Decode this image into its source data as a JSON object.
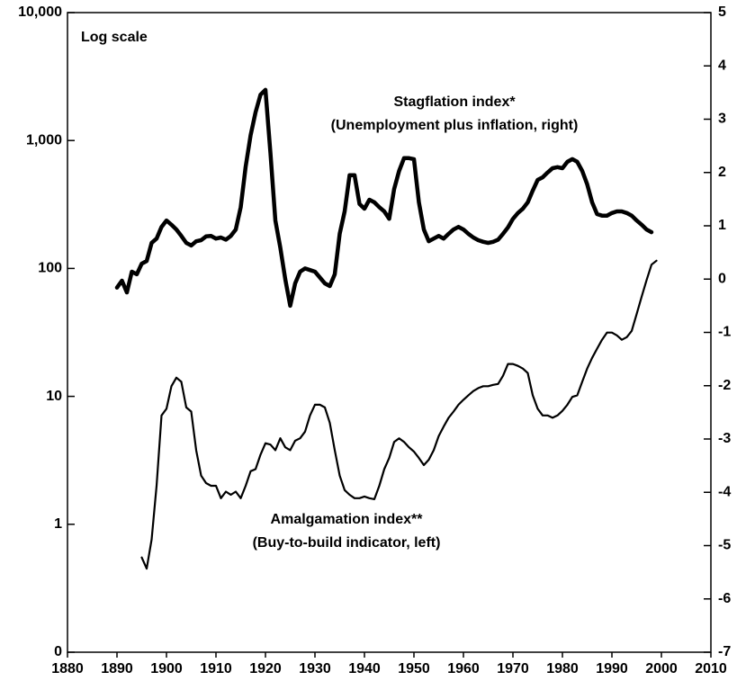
{
  "chart_data": {
    "type": "line",
    "log_scale_y": true,
    "annotations": [
      "Log scale",
      "(Unemployment plus inflation, right)",
      "(Buy-to-build indicator, left)"
    ],
    "xlim": [
      1880,
      2010
    ],
    "xticks": [
      1880,
      1890,
      1900,
      1910,
      1920,
      1930,
      1940,
      1950,
      1960,
      1970,
      1980,
      1990,
      2000,
      2010
    ],
    "ylim": [
      0.1,
      10000
    ],
    "yticks": [
      {
        "value": 0.1,
        "label": "0"
      },
      1,
      10,
      100,
      {
        "value": 1000,
        "label": "1,000"
      },
      {
        "value": 10000,
        "label": "10,000"
      }
    ],
    "y2lim": [
      -7,
      5
    ],
    "y2ticks": [
      -7,
      -6,
      -5,
      -4,
      -3,
      -2,
      -1,
      0,
      1,
      2,
      3,
      4,
      5
    ],
    "series": [
      {
        "name": "Stagflation index*",
        "color": "#000000",
        "axis": "y2",
        "x": [
          1890,
          1891,
          1892,
          1893,
          1894,
          1895,
          1896,
          1897,
          1898,
          1899,
          1900,
          1901,
          1902,
          1903,
          1904,
          1905,
          1906,
          1907,
          1908,
          1909,
          1910,
          1911,
          1912,
          1913,
          1914,
          1915,
          1916,
          1917,
          1918,
          1919,
          1920,
          1921,
          1922,
          1923,
          1924,
          1925,
          1926,
          1927,
          1928,
          1929,
          1930,
          1931,
          1932,
          1933,
          1934,
          1935,
          1936,
          1937,
          1938,
          1939,
          1940,
          1941,
          1942,
          1943,
          1944,
          1945,
          1946,
          1947,
          1948,
          1949,
          1950,
          1951,
          1952,
          1953,
          1954,
          1955,
          1956,
          1957,
          1958,
          1959,
          1960,
          1961,
          1962,
          1963,
          1964,
          1965,
          1966,
          1967,
          1968,
          1969,
          1970,
          1971,
          1972,
          1973,
          1974,
          1975,
          1976,
          1977,
          1978,
          1979,
          1980,
          1981,
          1982,
          1983,
          1984,
          1985,
          1986,
          1987,
          1988,
          1989,
          1990,
          1991,
          1992,
          1993,
          1994,
          1995,
          1996,
          1997,
          1998
        ],
        "values": [
          -0.16,
          -0.03,
          -0.25,
          0.14,
          0.09,
          0.29,
          0.34,
          0.68,
          0.76,
          0.98,
          1.1,
          1.02,
          0.93,
          0.81,
          0.68,
          0.63,
          0.71,
          0.73,
          0.8,
          0.81,
          0.76,
          0.78,
          0.74,
          0.81,
          0.93,
          1.35,
          2.11,
          2.7,
          3.13,
          3.46,
          3.55,
          2.37,
          1.1,
          0.59,
          0.0,
          -0.5,
          -0.08,
          0.14,
          0.2,
          0.17,
          0.14,
          0.03,
          -0.08,
          -0.13,
          0.09,
          0.85,
          1.27,
          1.95,
          1.95,
          1.41,
          1.32,
          1.49,
          1.44,
          1.35,
          1.27,
          1.13,
          1.69,
          2.03,
          2.27,
          2.27,
          2.25,
          1.44,
          0.93,
          0.71,
          0.76,
          0.81,
          0.76,
          0.85,
          0.93,
          0.98,
          0.93,
          0.85,
          0.78,
          0.73,
          0.7,
          0.68,
          0.7,
          0.74,
          0.85,
          0.97,
          1.13,
          1.24,
          1.32,
          1.44,
          1.66,
          1.86,
          1.91,
          2.0,
          2.08,
          2.1,
          2.08,
          2.2,
          2.25,
          2.2,
          2.03,
          1.78,
          1.44,
          1.22,
          1.19,
          1.19,
          1.24,
          1.27,
          1.27,
          1.24,
          1.19,
          1.1,
          1.02,
          0.93,
          0.88
        ]
      },
      {
        "name": "Amalgamation index**",
        "color": "#000000",
        "axis": "y",
        "x": [
          1895,
          1896,
          1897,
          1898,
          1899,
          1900,
          1901,
          1902,
          1903,
          1904,
          1905,
          1906,
          1907,
          1908,
          1909,
          1910,
          1911,
          1912,
          1913,
          1914,
          1915,
          1916,
          1917,
          1918,
          1919,
          1920,
          1921,
          1922,
          1923,
          1924,
          1925,
          1926,
          1927,
          1928,
          1929,
          1930,
          1931,
          1932,
          1933,
          1934,
          1935,
          1936,
          1937,
          1938,
          1939,
          1940,
          1941,
          1942,
          1943,
          1944,
          1945,
          1946,
          1947,
          1948,
          1949,
          1950,
          1951,
          1952,
          1953,
          1954,
          1955,
          1956,
          1957,
          1958,
          1959,
          1960,
          1961,
          1962,
          1963,
          1964,
          1965,
          1966,
          1967,
          1968,
          1969,
          1970,
          1971,
          1972,
          1973,
          1974,
          1975,
          1976,
          1977,
          1978,
          1979,
          1980,
          1981,
          1982,
          1983,
          1984,
          1985,
          1986,
          1987,
          1988,
          1989,
          1990,
          1991,
          1992,
          1993,
          1994,
          1995,
          1996,
          1997,
          1998,
          1999
        ],
        "values": [
          0.55,
          0.45,
          0.76,
          2.0,
          7.1,
          8.0,
          12,
          14,
          13,
          8.2,
          7.6,
          3.8,
          2.4,
          2.1,
          2.0,
          2.0,
          1.6,
          1.8,
          1.7,
          1.8,
          1.6,
          2.0,
          2.6,
          2.7,
          3.5,
          4.3,
          4.2,
          3.8,
          4.7,
          4.0,
          3.8,
          4.5,
          4.7,
          5.3,
          7.1,
          8.6,
          8.6,
          8.2,
          6.2,
          3.8,
          2.4,
          1.85,
          1.7,
          1.6,
          1.6,
          1.65,
          1.6,
          1.57,
          2.0,
          2.7,
          3.3,
          4.4,
          4.7,
          4.4,
          4.0,
          3.7,
          3.3,
          2.9,
          3.2,
          3.8,
          4.9,
          5.8,
          6.8,
          7.6,
          8.6,
          9.4,
          10.2,
          11.0,
          11.6,
          12,
          12,
          12.3,
          12.5,
          14.5,
          17.9,
          17.9,
          17.3,
          16.5,
          15.2,
          10.2,
          8.0,
          7.1,
          7.1,
          6.8,
          7.1,
          7.7,
          8.6,
          9.9,
          10.2,
          13,
          16.5,
          20,
          23.6,
          27.7,
          31.5,
          31.5,
          30,
          27.7,
          29,
          32.5,
          44,
          60,
          81,
          107,
          115
        ]
      }
    ]
  }
}
